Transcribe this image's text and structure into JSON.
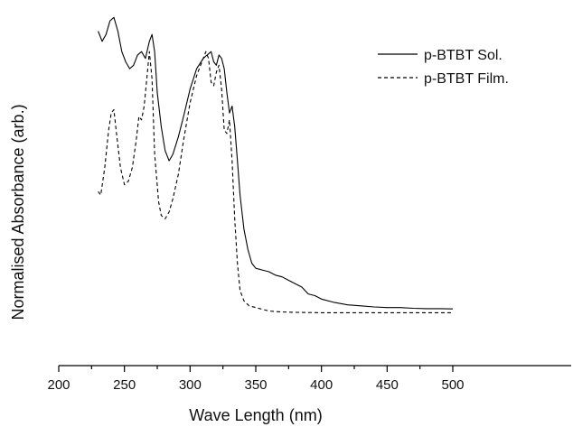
{
  "chart_data": {
    "type": "line",
    "xlabel": "Wave Length (nm)",
    "ylabel": "Normalised Absorbance (arb.)",
    "xlim": [
      200,
      520
    ],
    "ylim": [
      0,
      1.05
    ],
    "x_ticks": [
      200,
      250,
      300,
      350,
      400,
      450,
      500
    ],
    "y_ticks_shown": false,
    "grid": false,
    "legend_position": "top-right",
    "series": [
      {
        "name": "p-BTBT Sol.",
        "style": "solid",
        "color": "#000000",
        "points": [
          [
            230,
            0.98
          ],
          [
            233,
            0.95
          ],
          [
            236,
            0.97
          ],
          [
            239,
            1.01
          ],
          [
            242,
            1.02
          ],
          [
            245,
            0.98
          ],
          [
            248,
            0.92
          ],
          [
            251,
            0.89
          ],
          [
            254,
            0.87
          ],
          [
            257,
            0.88
          ],
          [
            260,
            0.91
          ],
          [
            263,
            0.92
          ],
          [
            266,
            0.9
          ],
          [
            269,
            0.95
          ],
          [
            271,
            0.97
          ],
          [
            273,
            0.92
          ],
          [
            275,
            0.8
          ],
          [
            278,
            0.7
          ],
          [
            281,
            0.63
          ],
          [
            284,
            0.6
          ],
          [
            287,
            0.62
          ],
          [
            291,
            0.67
          ],
          [
            295,
            0.73
          ],
          [
            300,
            0.81
          ],
          [
            305,
            0.87
          ],
          [
            310,
            0.9
          ],
          [
            313,
            0.91
          ],
          [
            316,
            0.92
          ],
          [
            318,
            0.89
          ],
          [
            320,
            0.88
          ],
          [
            322,
            0.91
          ],
          [
            324,
            0.9
          ],
          [
            326,
            0.87
          ],
          [
            328,
            0.8
          ],
          [
            330,
            0.74
          ],
          [
            332,
            0.76
          ],
          [
            334,
            0.7
          ],
          [
            336,
            0.6
          ],
          [
            338,
            0.5
          ],
          [
            341,
            0.4
          ],
          [
            344,
            0.34
          ],
          [
            347,
            0.3
          ],
          [
            350,
            0.285
          ],
          [
            355,
            0.28
          ],
          [
            360,
            0.275
          ],
          [
            365,
            0.265
          ],
          [
            370,
            0.26
          ],
          [
            375,
            0.25
          ],
          [
            380,
            0.24
          ],
          [
            385,
            0.23
          ],
          [
            390,
            0.21
          ],
          [
            395,
            0.205
          ],
          [
            400,
            0.195
          ],
          [
            410,
            0.185
          ],
          [
            420,
            0.178
          ],
          [
            430,
            0.175
          ],
          [
            440,
            0.172
          ],
          [
            450,
            0.17
          ],
          [
            460,
            0.17
          ],
          [
            470,
            0.168
          ],
          [
            480,
            0.167
          ],
          [
            490,
            0.167
          ],
          [
            500,
            0.166
          ]
        ]
      },
      {
        "name": "p-BTBT Film.",
        "style": "dashed",
        "color": "#000000",
        "points": [
          [
            230,
            0.51
          ],
          [
            232,
            0.5
          ],
          [
            235,
            0.58
          ],
          [
            238,
            0.69
          ],
          [
            240,
            0.74
          ],
          [
            242,
            0.75
          ],
          [
            244,
            0.68
          ],
          [
            247,
            0.58
          ],
          [
            250,
            0.53
          ],
          [
            253,
            0.54
          ],
          [
            256,
            0.58
          ],
          [
            259,
            0.66
          ],
          [
            261,
            0.73
          ],
          [
            263,
            0.72
          ],
          [
            265,
            0.76
          ],
          [
            267,
            0.84
          ],
          [
            269,
            0.92
          ],
          [
            271,
            0.84
          ],
          [
            273,
            0.62
          ],
          [
            276,
            0.48
          ],
          [
            278,
            0.44
          ],
          [
            281,
            0.43
          ],
          [
            284,
            0.45
          ],
          [
            287,
            0.49
          ],
          [
            291,
            0.56
          ],
          [
            295,
            0.66
          ],
          [
            300,
            0.77
          ],
          [
            305,
            0.85
          ],
          [
            309,
            0.89
          ],
          [
            312,
            0.92
          ],
          [
            314,
            0.9
          ],
          [
            316,
            0.83
          ],
          [
            318,
            0.82
          ],
          [
            320,
            0.86
          ],
          [
            322,
            0.88
          ],
          [
            324,
            0.81
          ],
          [
            326,
            0.69
          ],
          [
            328,
            0.68
          ],
          [
            330,
            0.72
          ],
          [
            332,
            0.6
          ],
          [
            334,
            0.43
          ],
          [
            336,
            0.3
          ],
          [
            338,
            0.22
          ],
          [
            341,
            0.19
          ],
          [
            345,
            0.175
          ],
          [
            350,
            0.17
          ],
          [
            355,
            0.165
          ],
          [
            360,
            0.16
          ],
          [
            370,
            0.157
          ],
          [
            380,
            0.156
          ],
          [
            400,
            0.155
          ],
          [
            420,
            0.155
          ],
          [
            440,
            0.155
          ],
          [
            460,
            0.155
          ],
          [
            480,
            0.155
          ],
          [
            500,
            0.155
          ]
        ]
      }
    ]
  }
}
